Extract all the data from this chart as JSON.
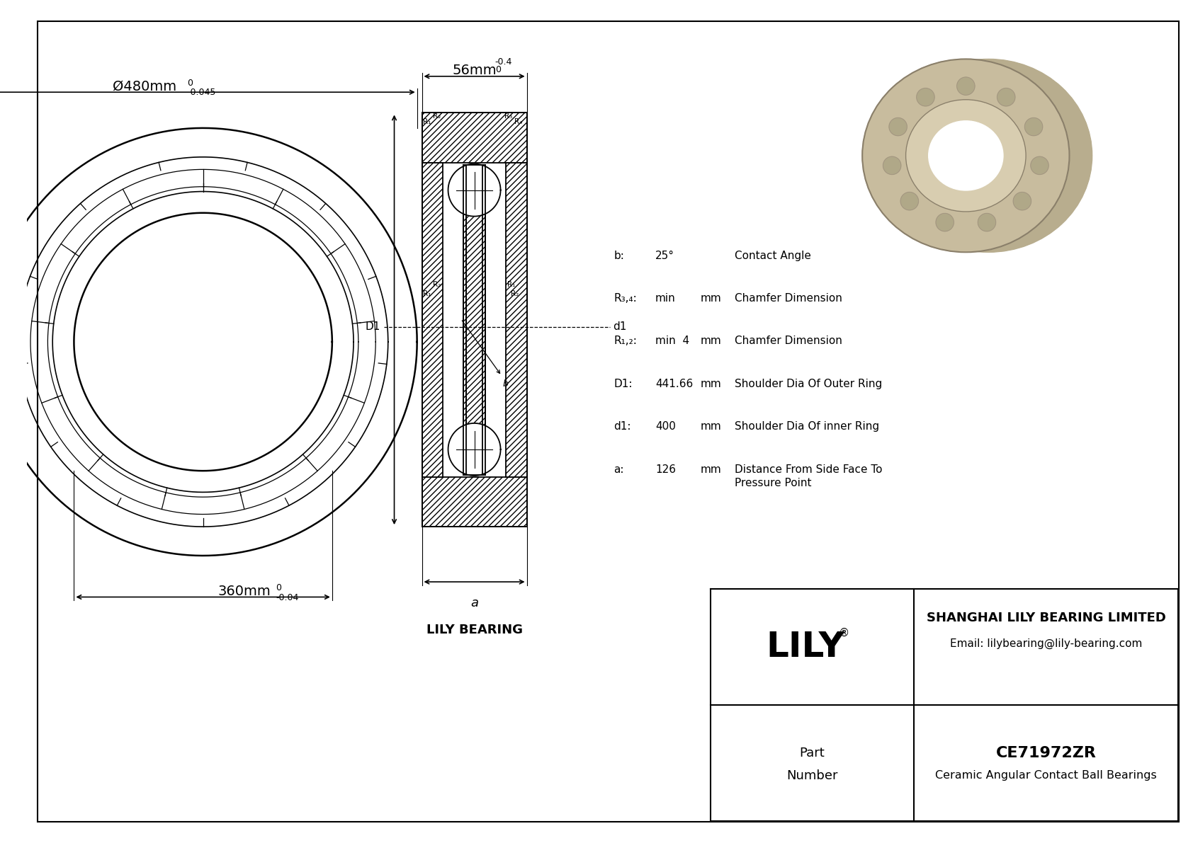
{
  "bg_color": "#ffffff",
  "line_color": "#000000",
  "outer_diameter_label": "Ø480mm",
  "outer_diameter_tol_upper": "0",
  "outer_diameter_tol_lower": "-0.045",
  "inner_diameter_label": "360mm",
  "inner_diameter_tol_upper": "0",
  "inner_diameter_tol_lower": "-0.04",
  "width_label": "56mm",
  "width_tol_upper": "0",
  "width_tol_lower": "-0.4",
  "params": [
    {
      "sym": "b:",
      "val": "25°",
      "unit": "",
      "desc": "Contact Angle"
    },
    {
      "sym": "R₃,₄:",
      "val": "min",
      "unit": "mm",
      "desc": "Chamfer Dimension"
    },
    {
      "sym": "R₁,₂:",
      "val": "min  4",
      "unit": "mm",
      "desc": "Chamfer Dimension"
    },
    {
      "sym": "D1:",
      "val": "441.66",
      "unit": "mm",
      "desc": "Shoulder Dia Of Outer Ring"
    },
    {
      "sym": "d1:",
      "val": "400",
      "unit": "mm",
      "desc": "Shoulder Dia Of inner Ring"
    },
    {
      "sym": "a:",
      "val": "126",
      "unit": "mm",
      "desc": "Distance From Side Face To\nPressure Point"
    }
  ],
  "lily_bearing_label": "LILY BEARING",
  "company": "SHANGHAI LILY BEARING LIMITED",
  "email": "Email: lilybearing@lily-bearing.com",
  "part_number": "CE71972ZR",
  "part_type": "Ceramic Angular Contact Ball Bearings"
}
